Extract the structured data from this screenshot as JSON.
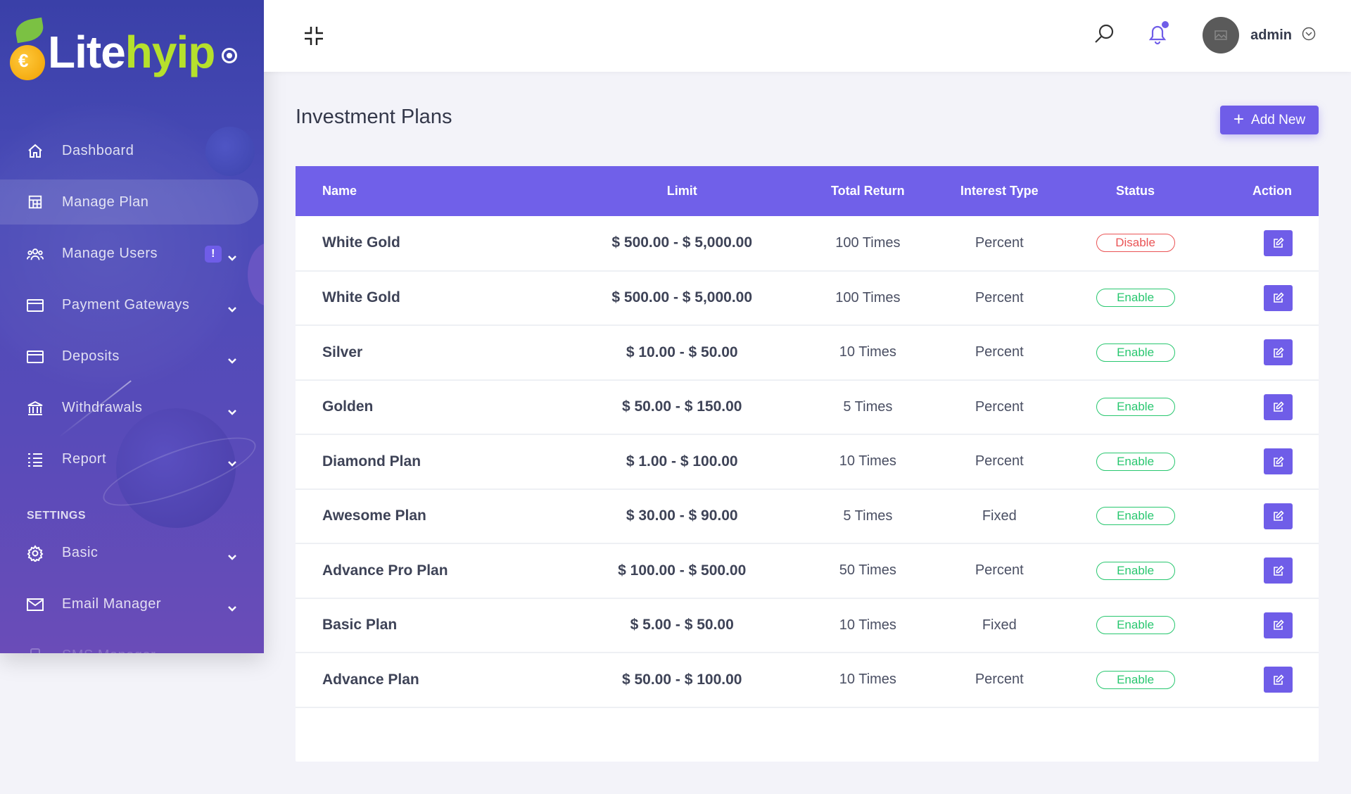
{
  "brand": {
    "part1": "Lite",
    "part2": "hyip"
  },
  "sidebar": {
    "items": [
      {
        "label": "Dashboard",
        "icon": "home-icon"
      },
      {
        "label": "Manage Plan",
        "icon": "plan-icon"
      },
      {
        "label": "Manage Users",
        "icon": "users-icon",
        "badge": "!"
      },
      {
        "label": "Payment Gateways",
        "icon": "card-icon"
      },
      {
        "label": "Deposits",
        "icon": "card-icon"
      },
      {
        "label": "Withdrawals",
        "icon": "bank-icon"
      },
      {
        "label": "Report",
        "icon": "list-icon"
      }
    ],
    "section_title": "SETTINGS",
    "settings_items": [
      {
        "label": "Basic",
        "icon": "gear-icon"
      },
      {
        "label": "Email Manager",
        "icon": "envelope-icon"
      },
      {
        "label": "SMS Manager",
        "icon": "phone-icon"
      }
    ]
  },
  "topbar": {
    "user_name": "admin"
  },
  "page": {
    "title": "Investment Plans",
    "add_button": "Add New"
  },
  "table": {
    "columns": [
      "Name",
      "Limit",
      "Total Return",
      "Interest Type",
      "Status",
      "Action"
    ],
    "rows": [
      {
        "name": "White Gold",
        "limit": "$ 500.00 - $ 5,000.00",
        "total_return": "100 Times",
        "interest_type": "Percent",
        "status": "Disable"
      },
      {
        "name": "White Gold",
        "limit": "$ 500.00 - $ 5,000.00",
        "total_return": "100 Times",
        "interest_type": "Percent",
        "status": "Enable"
      },
      {
        "name": "Silver",
        "limit": "$ 10.00 - $ 50.00",
        "total_return": "10 Times",
        "interest_type": "Percent",
        "status": "Enable"
      },
      {
        "name": "Golden",
        "limit": "$ 50.00 - $ 150.00",
        "total_return": "5 Times",
        "interest_type": "Percent",
        "status": "Enable"
      },
      {
        "name": "Diamond Plan",
        "limit": "$ 1.00 - $ 100.00",
        "total_return": "10 Times",
        "interest_type": "Percent",
        "status": "Enable"
      },
      {
        "name": "Awesome Plan",
        "limit": "$ 30.00 - $ 90.00",
        "total_return": "5 Times",
        "interest_type": "Fixed",
        "status": "Enable"
      },
      {
        "name": "Advance Pro Plan",
        "limit": "$ 100.00 - $ 500.00",
        "total_return": "50 Times",
        "interest_type": "Percent",
        "status": "Enable"
      },
      {
        "name": "Basic Plan",
        "limit": "$ 5.00 - $ 50.00",
        "total_return": "10 Times",
        "interest_type": "Fixed",
        "status": "Enable"
      },
      {
        "name": "Advance Plan",
        "limit": "$ 50.00 - $ 100.00",
        "total_return": "10 Times",
        "interest_type": "Percent",
        "status": "Enable"
      }
    ]
  },
  "colors": {
    "accent": "#7060e9",
    "enable": "#28c76f",
    "disable": "#ea5455",
    "sidebar": "#4a4bb8"
  }
}
